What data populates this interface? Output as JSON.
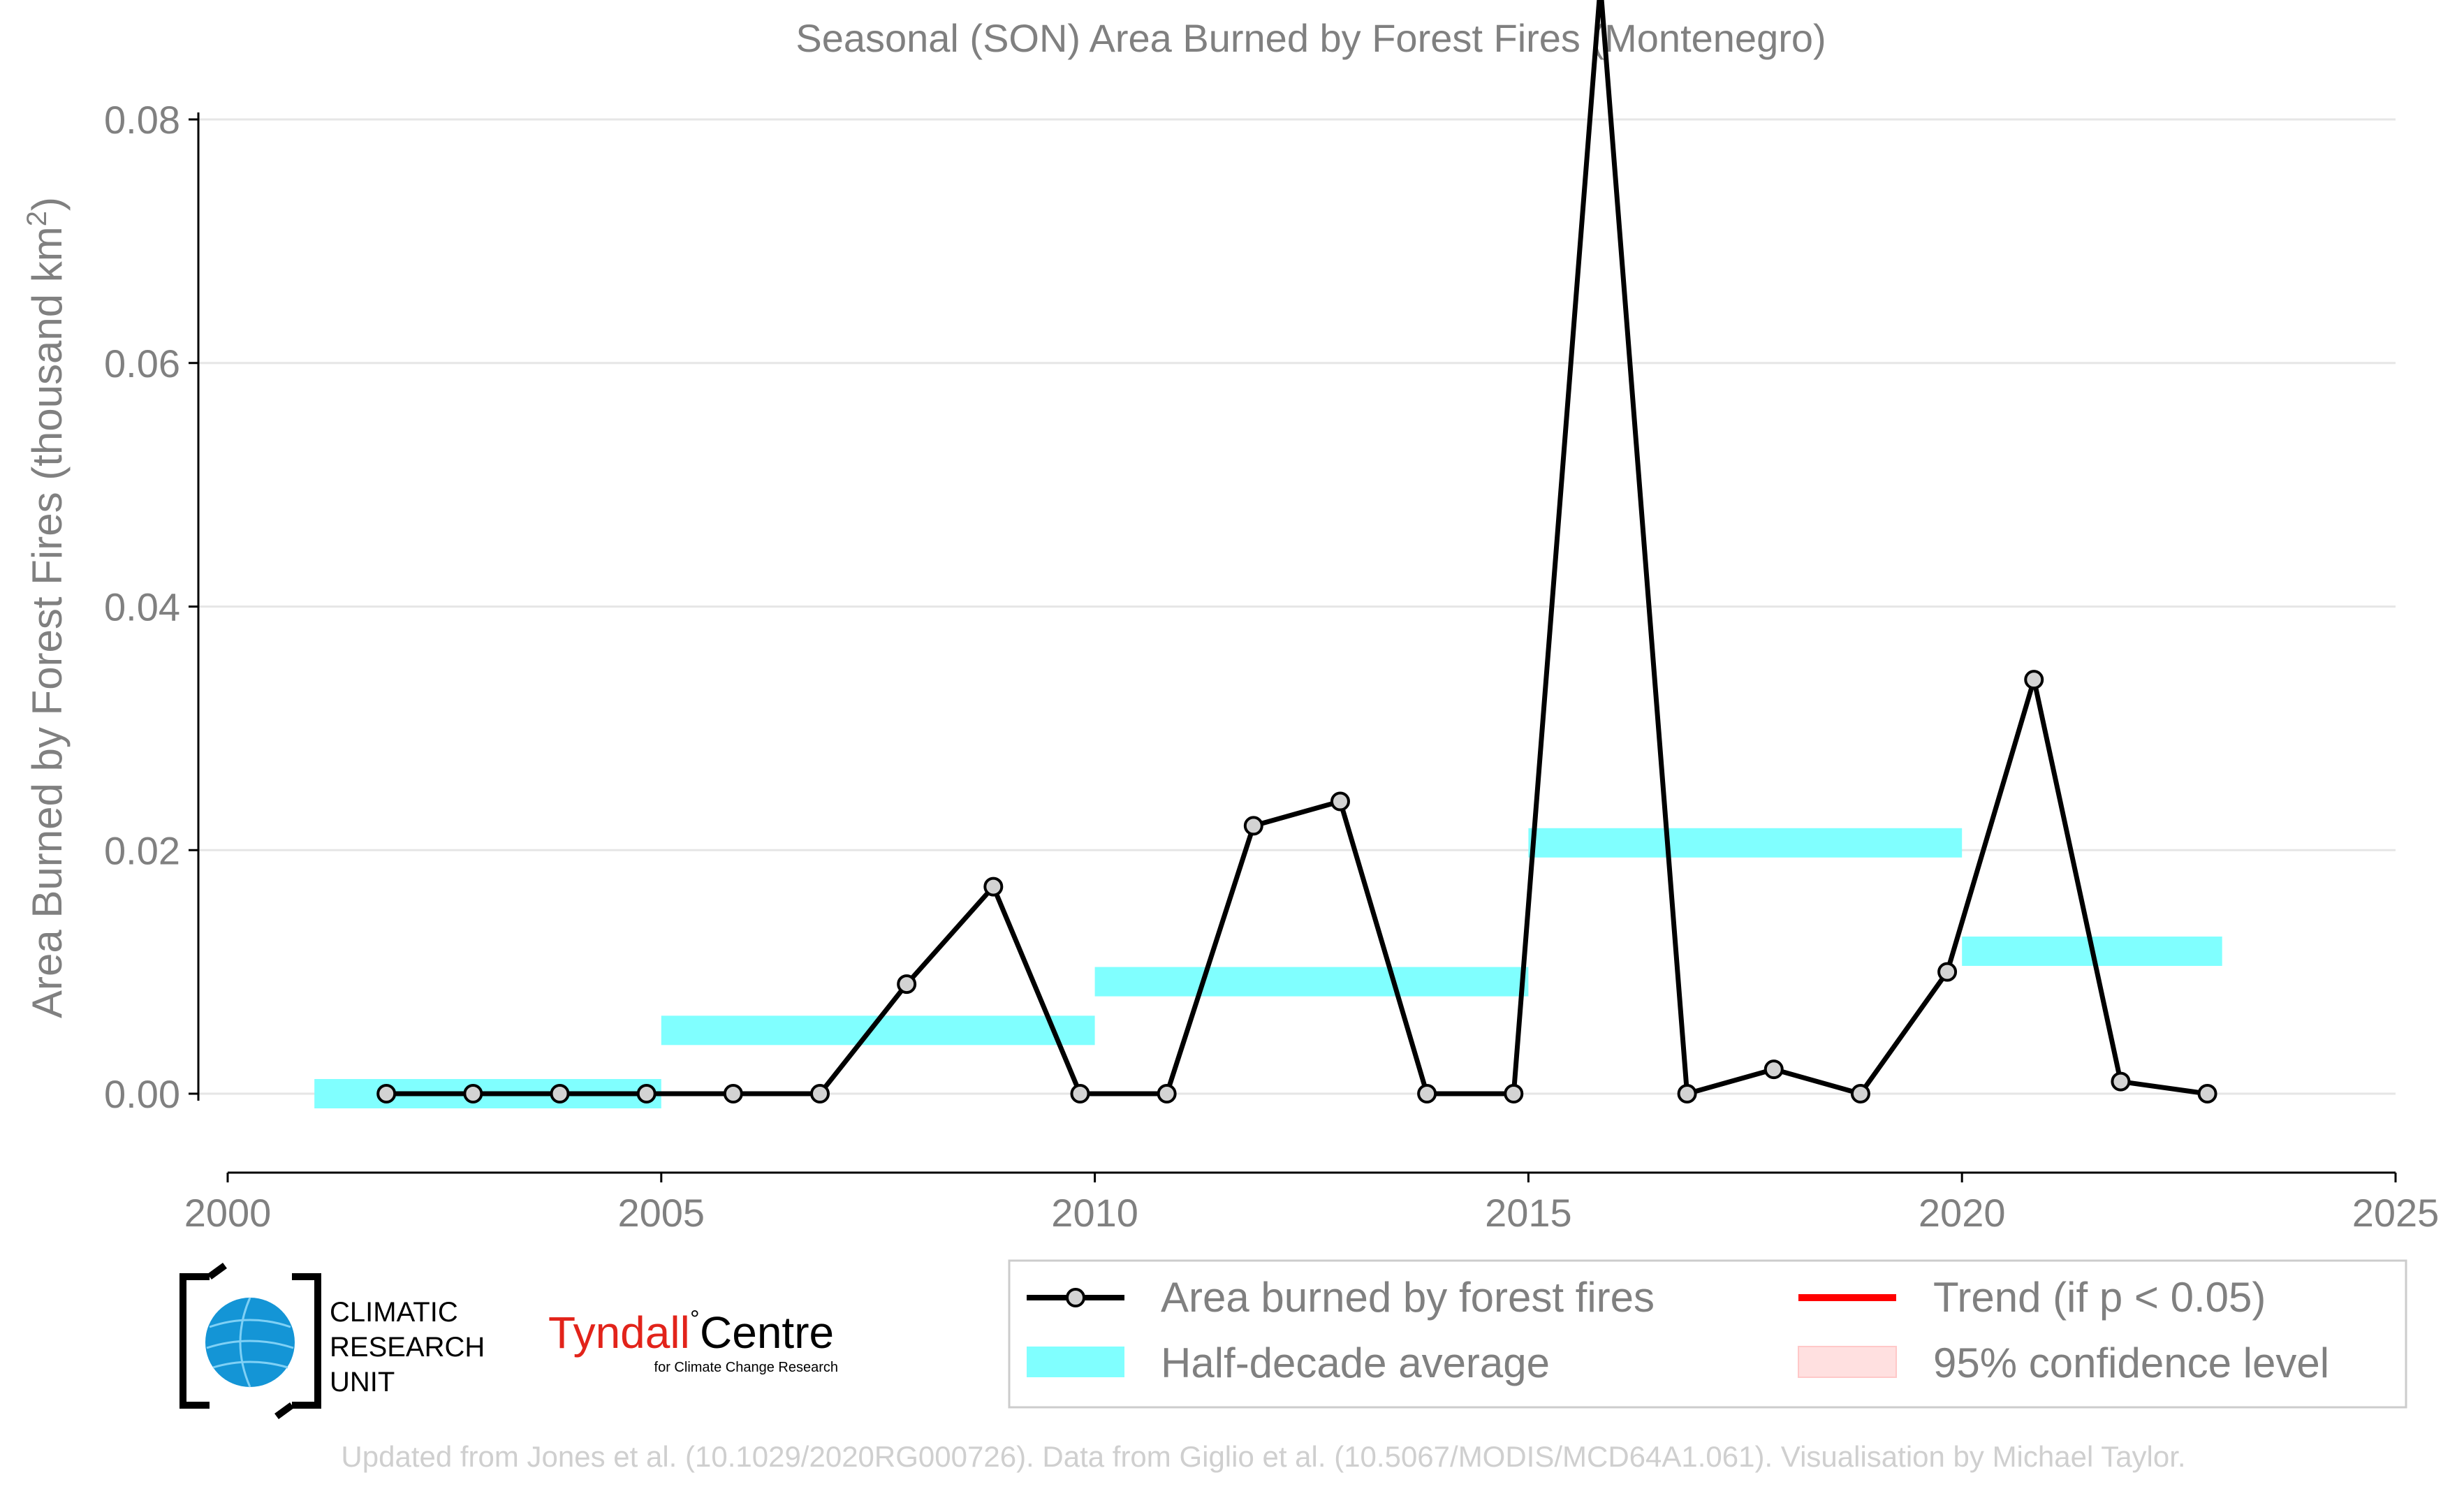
{
  "chart_data": {
    "type": "line",
    "title": "Seasonal (SON) Area Burned by Forest Fires (Montenegro)",
    "ylabel": "Area Burned by Forest Fires (thousand km²)",
    "xlabel": "",
    "xlim": [
      2000,
      2025
    ],
    "ylim": [
      -0.0075,
      0.0925
    ],
    "x_ticks": [
      2000,
      2005,
      2010,
      2015,
      2020,
      2025
    ],
    "x_tick_labels": [
      "2000",
      "2005",
      "2010",
      "2015",
      "2020",
      "2025"
    ],
    "y_ticks": [
      0.0,
      0.02,
      0.04,
      0.06,
      0.08
    ],
    "y_tick_labels": [
      "0.00",
      "0.02",
      "0.04",
      "0.06",
      "0.08"
    ],
    "grid": "horizontal",
    "legend_position": "bottom-right",
    "series": [
      {
        "name": "Area burned by forest fires",
        "color": "#000000",
        "marker_fill": "#d3d3d3",
        "x": [
          2001.83,
          2002.83,
          2003.83,
          2004.83,
          2005.83,
          2006.83,
          2007.83,
          2008.83,
          2009.83,
          2010.83,
          2011.83,
          2012.83,
          2013.83,
          2014.83,
          2015.83,
          2016.83,
          2017.83,
          2018.83,
          2019.83,
          2020.83,
          2021.83,
          2022.83
        ],
        "y": [
          0.0,
          0.0,
          0.0,
          0.0,
          0.0,
          0.0,
          0.009,
          0.017,
          0.0,
          0.0,
          0.022,
          0.024,
          0.0,
          0.0,
          0.091,
          0.0,
          0.002,
          0.0,
          0.01,
          0.034,
          0.001,
          0.0
        ]
      }
    ],
    "half_decade_average": {
      "name": "Half-decade average",
      "color": "#80ffff",
      "segments": [
        {
          "x0": 2001,
          "x1": 2005,
          "y": 0.0
        },
        {
          "x0": 2005,
          "x1": 2010,
          "y": 0.0052
        },
        {
          "x0": 2010,
          "x1": 2015,
          "y": 0.0092
        },
        {
          "x0": 2015,
          "x1": 2020,
          "y": 0.0206
        },
        {
          "x0": 2020,
          "x1": 2023,
          "y": 0.0117
        }
      ]
    },
    "legend": [
      {
        "label": "Area burned by forest fires",
        "kind": "line-marker",
        "color": "#000000"
      },
      {
        "label": "Trend (if p < 0.05)",
        "kind": "line",
        "color": "#ff0000"
      },
      {
        "label": "Half-decade average",
        "kind": "band",
        "color": "#80ffff"
      },
      {
        "label": "95% confidence level",
        "kind": "band",
        "color": "#ffe0e0"
      }
    ]
  },
  "logos": {
    "cru_lines": [
      "CLIMATIC",
      "RESEARCH",
      "UNIT"
    ],
    "tyndall_name": "Tyndall",
    "tyndall_centre": "Centre",
    "tyndall_sub": "for Climate Change Research"
  },
  "credit": "Updated from Jones et al. (10.1029/2020RG000726). Data from Giglio et al. (10.5067/MODIS/MCD64A1.061). Visualisation by Michael Taylor."
}
